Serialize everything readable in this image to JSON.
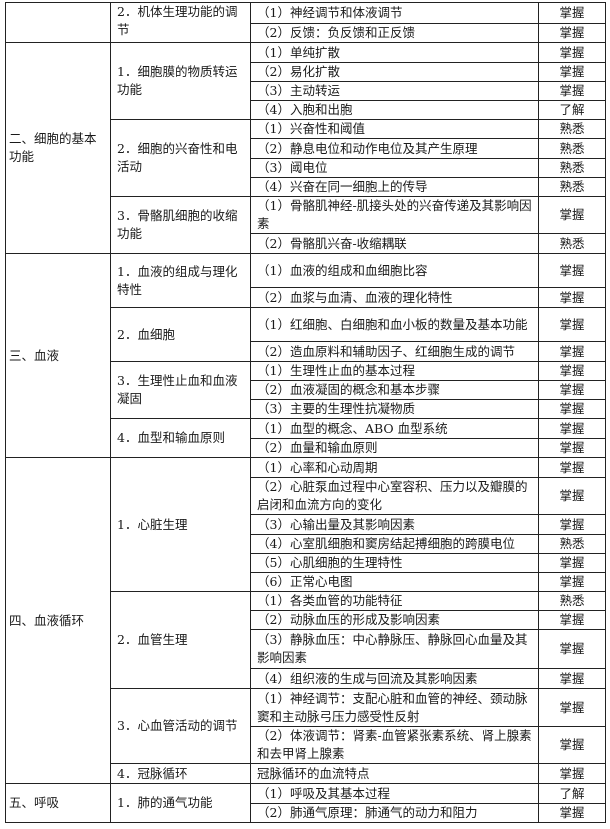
{
  "sections": [
    {
      "title": "",
      "topics": [
        {
          "title": "2．机体生理功能的调节",
          "items": [
            {
              "text": "（1）神经调节和体液调节",
              "level": "掌握"
            },
            {
              "text": "（2）反馈：负反馈和正反馈",
              "level": "掌握"
            }
          ]
        }
      ]
    },
    {
      "title": "二、细胞的基本功能",
      "topics": [
        {
          "title": "1．细胞膜的物质转运功能",
          "items": [
            {
              "text": "（1）单纯扩散",
              "level": "掌握"
            },
            {
              "text": "（2）易化扩散",
              "level": "掌握"
            },
            {
              "text": "（3）主动转运",
              "level": "掌握"
            },
            {
              "text": "（4）入胞和出胞",
              "level": "了解"
            }
          ]
        },
        {
          "title": "2．细胞的兴奋性和电活动",
          "items": [
            {
              "text": "（1）兴奋性和阈值",
              "level": "熟悉"
            },
            {
              "text": "（2）静息电位和动作电位及其产生原理",
              "level": "熟悉"
            },
            {
              "text": "（3）阈电位",
              "level": "熟悉"
            },
            {
              "text": "（4）兴奋在同一细胞上的传导",
              "level": "熟悉"
            }
          ]
        },
        {
          "title": "3．骨骼肌细胞的收缩功能",
          "items": [
            {
              "text": "（1）骨骼肌神经-肌接头处的兴奋传递及其影响因素",
              "level": "掌握"
            },
            {
              "text": "（2）骨骼肌兴奋-收缩耦联",
              "level": "熟悉"
            }
          ]
        }
      ]
    },
    {
      "title": "三、血液",
      "topics": [
        {
          "title": "1．血液的组成与理化特性",
          "items": [
            {
              "text": "（1）血液的组成和血细胞比容",
              "level": "掌握"
            },
            {
              "text": "（2）血浆与血清、血液的理化特性",
              "level": "掌握"
            }
          ]
        },
        {
          "title": "2．血细胞",
          "items": [
            {
              "text": "（1）红细胞、白细胞和血小板的数量及基本功能",
              "level": "掌握"
            },
            {
              "text": "（2）造血原料和辅助因子、红细胞生成的调节",
              "level": "掌握"
            }
          ]
        },
        {
          "title": "3．生理性止血和血液凝固",
          "items": [
            {
              "text": "（1）生理性止血的基本过程",
              "level": "掌握"
            },
            {
              "text": "（2）血液凝固的概念和基本步骤",
              "level": "掌握"
            },
            {
              "text": "（3）主要的生理性抗凝物质",
              "level": "掌握"
            }
          ]
        },
        {
          "title": "4．血型和输血原则",
          "items": [
            {
              "text": "（1）血型的概念、ABO 血型系统",
              "level": "掌握"
            },
            {
              "text": "（2）血量和输血原则",
              "level": "掌握"
            }
          ]
        }
      ]
    },
    {
      "title": "四、血液循环",
      "topics": [
        {
          "title": "1．心脏生理",
          "items": [
            {
              "text": "（1）心率和心动周期",
              "level": "掌握"
            },
            {
              "text": "（2）心脏泵血过程中心室容积、压力以及瓣膜的启闭和血流方向的变化",
              "level": "掌握"
            },
            {
              "text": "（3）心输出量及其影响因素",
              "level": "掌握"
            },
            {
              "text": "（4）心室肌细胞和窦房结起搏细胞的跨膜电位",
              "level": "熟悉"
            },
            {
              "text": "（5）心肌细胞的生理特性",
              "level": "掌握"
            },
            {
              "text": "（6）正常心电图",
              "level": "掌握"
            }
          ]
        },
        {
          "title": "2．血管生理",
          "items": [
            {
              "text": "（1）各类血管的功能特征",
              "level": "熟悉"
            },
            {
              "text": "（2）动脉血压的形成及影响因素",
              "level": "掌握"
            },
            {
              "text": "（3）静脉血压：中心静脉压、静脉回心血量及其影响因素",
              "level": "掌握"
            },
            {
              "text": "（4）组织液的生成与回流及其影响因素",
              "level": "掌握"
            }
          ]
        },
        {
          "title": "3．心血管活动的调节",
          "items": [
            {
              "text": "（1）神经调节：支配心脏和血管的神经、颈动脉窦和主动脉弓压力感受性反射",
              "level": "掌握"
            },
            {
              "text": "（2）体液调节：肾素-血管紧张素系统、肾上腺素和去甲肾上腺素",
              "level": "掌握"
            }
          ]
        },
        {
          "title": "4．冠脉循环",
          "items": [
            {
              "text": "冠脉循环的血流特点",
              "level": "掌握"
            }
          ]
        }
      ]
    },
    {
      "title": "五、呼吸",
      "topics": [
        {
          "title": "1．肺的通气功能",
          "items": [
            {
              "text": "（1）呼吸及其基本过程",
              "level": "了解"
            },
            {
              "text": "（2）肺通气原理：肺通气的动力和阻力",
              "level": "掌握"
            }
          ]
        }
      ]
    }
  ]
}
